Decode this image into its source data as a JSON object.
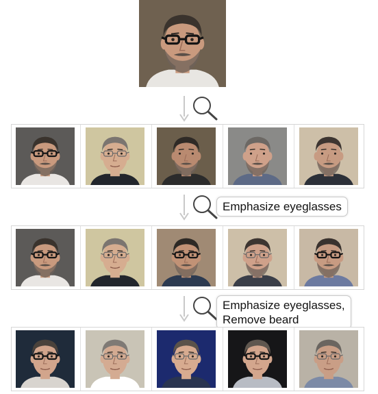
{
  "query_image": {
    "icon": "face-photo-icon",
    "glasses": "dark",
    "beard": true,
    "bg": "#6f6150"
  },
  "arrow_icon": "down-arrow-icon",
  "search_icon": "magnifier-icon",
  "rows": [
    {
      "prompt_lines": [],
      "faces": [
        {
          "bg": "#5c5a58",
          "skin": "#c99a7e",
          "hair": "#3a332d",
          "glasses": "dark",
          "beard": true,
          "shirt": "#e9e6e3"
        },
        {
          "bg": "#cfc6a0",
          "skin": "#d6ad90",
          "hair": "#7b7570",
          "glasses": "thin",
          "beard": false,
          "shirt": "#22262c"
        },
        {
          "bg": "#6b5e4b",
          "skin": "#b98a70",
          "hair": "#2f2a26",
          "glasses": "none",
          "beard": true,
          "shirt": "#2b2b2b"
        },
        {
          "bg": "#8a8a88",
          "skin": "#cfa18a",
          "hair": "#6c6864",
          "glasses": "none",
          "beard": true,
          "shirt": "#5d6a86"
        },
        {
          "bg": "#cdbfa8",
          "skin": "#c79b82",
          "hair": "#3d3531",
          "glasses": "none",
          "beard": true,
          "shirt": "#2c3038"
        }
      ]
    },
    {
      "prompt_lines": [
        "Emphasize eyeglasses"
      ],
      "faces": [
        {
          "bg": "#5c5a58",
          "skin": "#c99a7e",
          "hair": "#3a332d",
          "glasses": "dark",
          "beard": true,
          "shirt": "#e9e6e3"
        },
        {
          "bg": "#cfc6a0",
          "skin": "#d6ad90",
          "hair": "#7b7570",
          "glasses": "thin",
          "beard": false,
          "shirt": "#22262c"
        },
        {
          "bg": "#a08a74",
          "skin": "#c19276",
          "hair": "#2d2925",
          "glasses": "dark",
          "beard": true,
          "shirt": "#2c3a50"
        },
        {
          "bg": "#cdbfa8",
          "skin": "#cfa18a",
          "hair": "#3d3531",
          "glasses": "thin",
          "beard": true,
          "shirt": "#3a3e48"
        },
        {
          "bg": "#c8b9a5",
          "skin": "#c79b82",
          "hair": "#3a322e",
          "glasses": "dark",
          "beard": true,
          "shirt": "#6c7aa0"
        }
      ]
    },
    {
      "prompt_lines": [
        "Emphasize eyeglasses,",
        "Remove beard"
      ],
      "faces": [
        {
          "bg": "#1f2b3a",
          "skin": "#d2a58c",
          "hair": "#4a423b",
          "glasses": "dark",
          "beard": false,
          "shirt": "#d8d4cf"
        },
        {
          "bg": "#c9c4b6",
          "skin": "#d4ab92",
          "hair": "#7f7a75",
          "glasses": "thin",
          "beard": false,
          "shirt": "#ffffff"
        },
        {
          "bg": "#1c2a6e",
          "skin": "#d7ab90",
          "hair": "#5a524a",
          "glasses": "thin",
          "beard": false,
          "shirt": "#2a3550"
        },
        {
          "bg": "#161618",
          "skin": "#d3a68d",
          "hair": "#5f574f",
          "glasses": "dark",
          "beard": false,
          "shirt": "#b8bcc4"
        },
        {
          "bg": "#b9b2a6",
          "skin": "#c99e86",
          "hair": "#6a6560",
          "glasses": "thin",
          "beard": false,
          "shirt": "#7c8aa6"
        }
      ]
    }
  ]
}
